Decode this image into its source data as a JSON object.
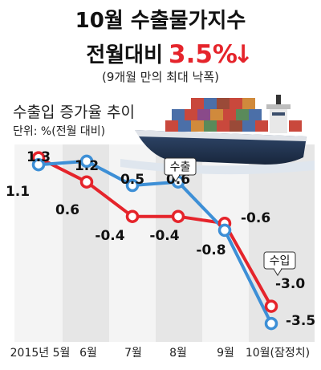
{
  "headline": {
    "line1": "10월 수출물가지수",
    "line2_prefix": "전월대비",
    "line2_value": "3.5%",
    "line2_arrow": "↓",
    "subtitle": "(9개월 만의 최대 낙폭)"
  },
  "colors": {
    "export": "#3d8fd6",
    "import": "#e5242b",
    "accent": "#e5242b",
    "band_light": "#f4f4f4",
    "band_dark": "#e6e6e6",
    "ship_hull": "#243a5a"
  },
  "chart_data": {
    "type": "line",
    "title": "수출입 증가율 추이",
    "unit": "단위: %(전월 대비)",
    "xlabel": "",
    "ylabel": "",
    "categories": [
      "2015년 5월",
      "6월",
      "7월",
      "8월",
      "9월",
      "10월(잠정치)"
    ],
    "ylim": [
      -3.8,
      1.5
    ],
    "grid": false,
    "series": [
      {
        "name": "수출",
        "color": "#3d8fd6",
        "values": [
          1.1,
          1.2,
          0.5,
          0.6,
          -0.8,
          -3.5
        ],
        "labels": [
          "1.1",
          "1.2",
          "0.5",
          "0.6",
          "-0.8",
          "-3.5"
        ]
      },
      {
        "name": "수입",
        "color": "#e5242b",
        "values": [
          1.3,
          0.6,
          -0.4,
          -0.4,
          -0.6,
          -3.0
        ],
        "labels": [
          "1.3",
          "0.6",
          "-0.4",
          "-0.4",
          "-0.6",
          "-3.0"
        ]
      }
    ]
  }
}
